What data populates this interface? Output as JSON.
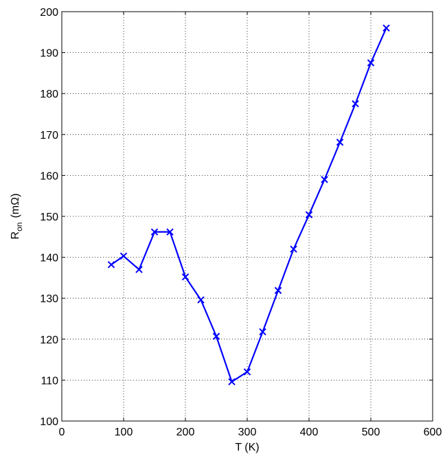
{
  "chart_data": {
    "type": "line",
    "title": "",
    "xlabel": "T (K)",
    "ylabel": {
      "main": "R",
      "subscript": "on",
      "unit": "(mΩ)"
    },
    "xlim": [
      0,
      600
    ],
    "ylim": [
      100,
      200
    ],
    "xticks": [
      0,
      100,
      200,
      300,
      400,
      500,
      600
    ],
    "yticks": [
      100,
      110,
      120,
      130,
      140,
      150,
      160,
      170,
      180,
      190,
      200
    ],
    "grid": true,
    "marker": "x",
    "line_color": "#0000ff",
    "series": [
      {
        "x": [
          80,
          100,
          125,
          150,
          175,
          200,
          225,
          250,
          275,
          300,
          325,
          350,
          375,
          400,
          425,
          450,
          475,
          500,
          525
        ],
        "y": [
          138.2,
          140.3,
          137.0,
          146.2,
          146.2,
          135.2,
          129.6,
          120.7,
          109.6,
          112.0,
          121.8,
          131.9,
          142.0,
          150.4,
          159.0,
          168.1,
          177.5,
          187.5,
          196.0
        ]
      }
    ]
  }
}
